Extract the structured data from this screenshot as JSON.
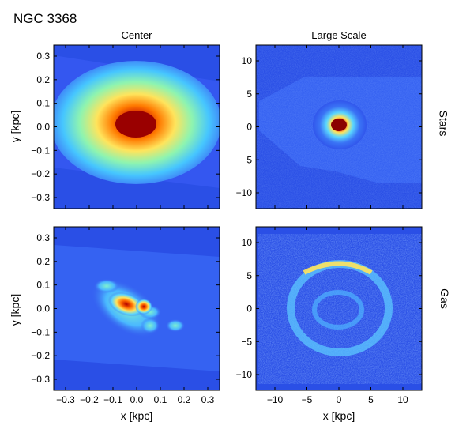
{
  "figure": {
    "title": "NGC 3368",
    "columns": [
      "Center",
      "Large Scale"
    ],
    "rows": [
      "Stars",
      "Gas"
    ],
    "xlabel": "x [kpc]",
    "ylabel": "y [kpc]"
  },
  "axes": {
    "center": {
      "x_ticks": [
        "−0.3",
        "−0.2",
        "−0.1",
        "0.0",
        "0.1",
        "0.2",
        "0.3"
      ],
      "y_ticks": [
        "0.3",
        "0.2",
        "0.1",
        "0.0",
        "−0.1",
        "−0.2",
        "−0.3"
      ]
    },
    "large": {
      "x_ticks": [
        "−10",
        "−5",
        "0",
        "5",
        "10"
      ],
      "y_ticks": [
        "10",
        "5",
        "0",
        "−5",
        "−10"
      ]
    }
  },
  "colors": {
    "background": "#2a4fe6",
    "low": "#3457f0",
    "mid": "#5ad6ff",
    "high": "#ffe45c",
    "peak": "#b30000"
  }
}
